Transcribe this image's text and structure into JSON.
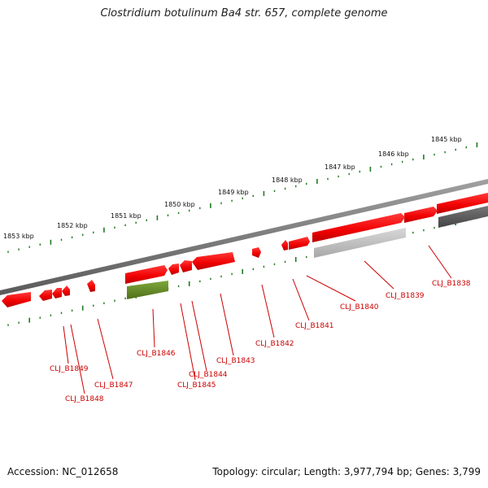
{
  "title": "Clostridium botulinum Ba4 str. 657, complete genome",
  "footer": {
    "accession": "Accession: NC_012658",
    "summary": "Topology: circular; Length: 3,977,794 bp; Genes: 3,799"
  },
  "colors": {
    "forward_gene": "#ff1a1a",
    "reverse_gene": "#ff1a1a",
    "rna_gene": "#6b8e23",
    "pseudo_gene": "#bdbdbd",
    "dark_gene": "#555555",
    "backbone": "#7a7a7a",
    "tick": "#1e7a1e",
    "label": "#cc0000"
  },
  "scale_labels": [
    "1845 kbp",
    "1846 kbp",
    "1847 kbp",
    "1848 kbp",
    "1849 kbp",
    "1850 kbp",
    "1851 kbp",
    "1852 kbp",
    "1853 kbp"
  ],
  "gene_labels": [
    "CLJ_B1838",
    "CLJ_B1839",
    "CLJ_B1840",
    "CLJ_B1841",
    "CLJ_B1842",
    "CLJ_B1843",
    "CLJ_B1844",
    "CLJ_B1845",
    "CLJ_B1846",
    "CLJ_B1847",
    "CLJ_B1848",
    "CLJ_B1849"
  ]
}
